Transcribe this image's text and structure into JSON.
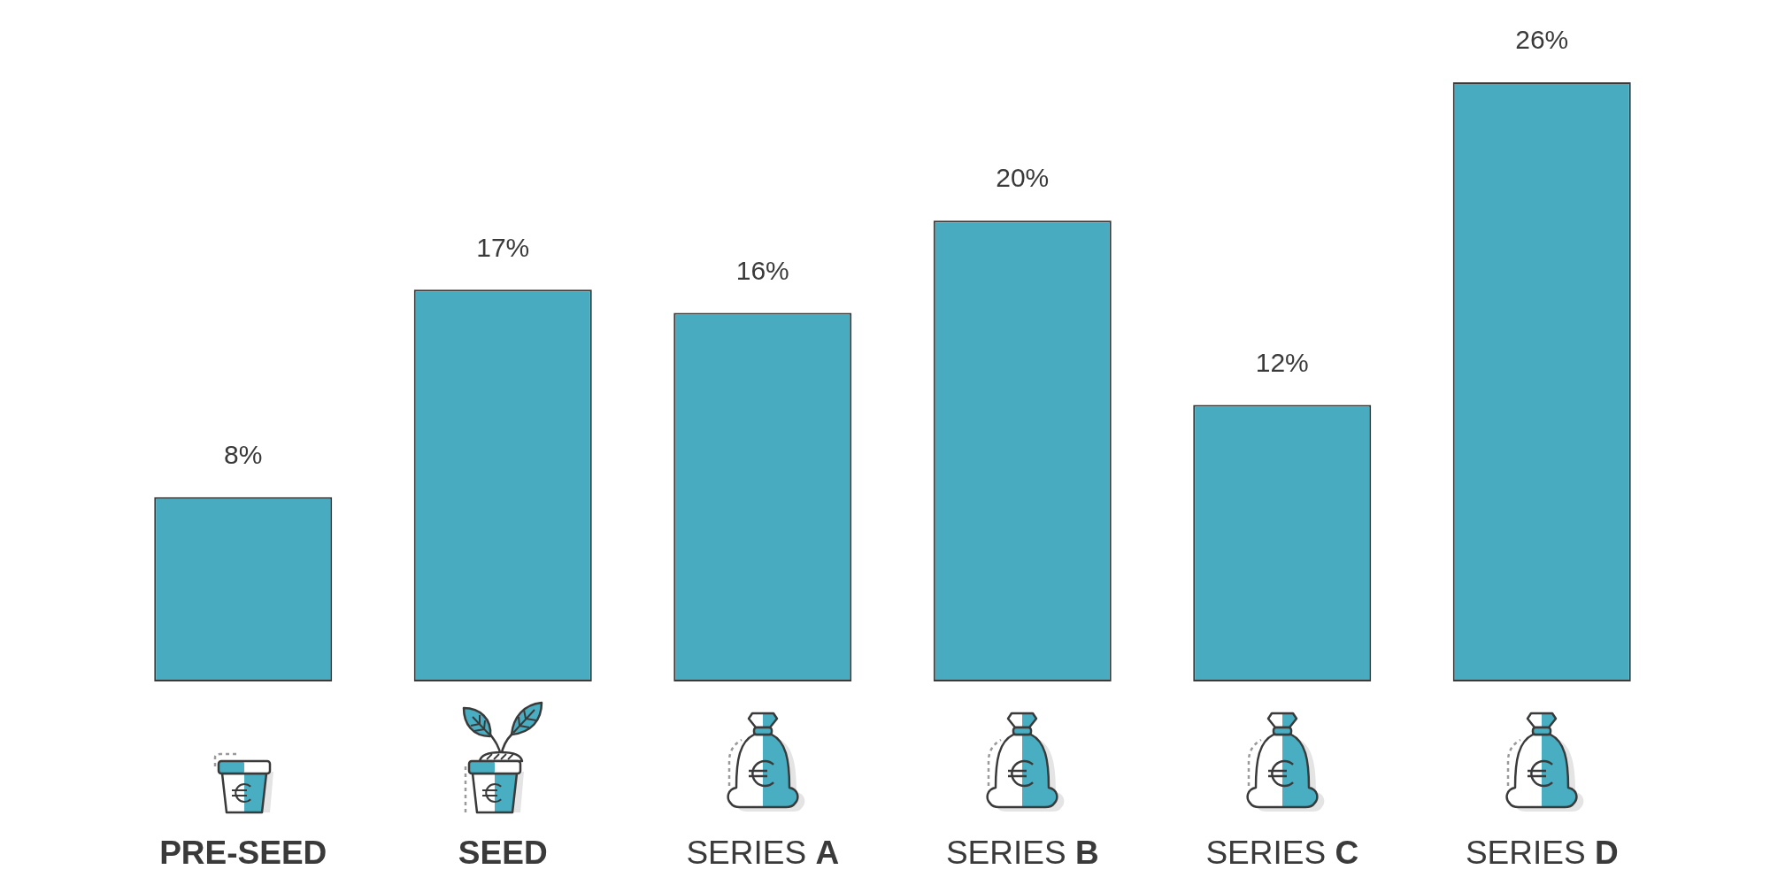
{
  "chart_data": {
    "type": "bar",
    "categories": [
      "PRE-SEED",
      "SEED",
      "SERIES A",
      "SERIES B",
      "SERIES C",
      "SERIES D"
    ],
    "values": [
      8,
      17,
      16,
      20,
      12,
      26
    ],
    "color": "#48abbf",
    "value_labels": [
      "8%",
      "17%",
      "16%",
      "20%",
      "12%",
      "26%"
    ],
    "tick_labels": "x"
  }
}
